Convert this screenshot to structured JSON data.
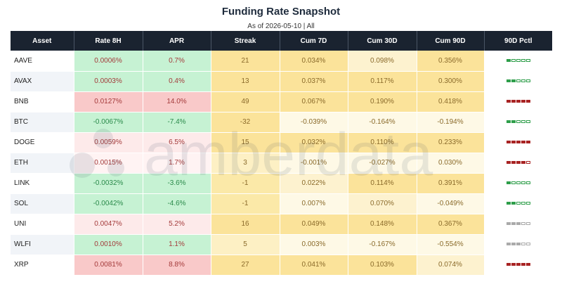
{
  "title": "Funding Rate Snapshot",
  "subtitle": "As of 2026-05-10 | All",
  "watermark_text": "amberdata",
  "columns": [
    "Asset",
    "Rate 8H",
    "APR",
    "Streak",
    "Cum 7D",
    "Cum 30D",
    "Cum 90D",
    "90D Pctl"
  ],
  "colors": {
    "header_bg": "#1a2330",
    "neg_text": "#2a8a4a",
    "pos_text": "#a33a3a",
    "gold_text": "#8a6a2a",
    "pctl_green": "#2e9e4a",
    "pctl_red": "#a82323",
    "pctl_gray": "#aaaaaa"
  },
  "chart_data": {
    "type": "table",
    "title": "Funding Rate Snapshot",
    "subtitle": "As of 2026-05-10 | All",
    "columns": [
      "Asset",
      "Rate 8H",
      "APR",
      "Streak",
      "Cum 7D",
      "Cum 30D",
      "Cum 90D",
      "90D Pctl"
    ],
    "rows": [
      {
        "asset": "AAVE",
        "rate_8h": "0.0006%",
        "apr": "0.7%",
        "streak": "21",
        "cum_7d": "0.034%",
        "cum_30d": "0.098%",
        "cum_90d": "0.356%",
        "pctl": {
          "filled": 1,
          "color": "green"
        },
        "rate_v": 0.0006,
        "apr_v": 0.7,
        "streak_v": 21,
        "c7_v": 0.034,
        "c30_v": 0.098,
        "c90_v": 0.356
      },
      {
        "asset": "AVAX",
        "rate_8h": "0.0003%",
        "apr": "0.4%",
        "streak": "13",
        "cum_7d": "0.037%",
        "cum_30d": "0.117%",
        "cum_90d": "0.300%",
        "pctl": {
          "filled": 2,
          "color": "green"
        },
        "rate_v": 0.0003,
        "apr_v": 0.4,
        "streak_v": 13,
        "c7_v": 0.037,
        "c30_v": 0.117,
        "c90_v": 0.3
      },
      {
        "asset": "BNB",
        "rate_8h": "0.0127%",
        "apr": "14.0%",
        "streak": "49",
        "cum_7d": "0.067%",
        "cum_30d": "0.190%",
        "cum_90d": "0.418%",
        "pctl": {
          "filled": 5,
          "color": "red"
        },
        "rate_v": 0.0127,
        "apr_v": 14.0,
        "streak_v": 49,
        "c7_v": 0.067,
        "c30_v": 0.19,
        "c90_v": 0.418
      },
      {
        "asset": "BTC",
        "rate_8h": "-0.0067%",
        "apr": "-7.4%",
        "streak": "-32",
        "cum_7d": "-0.039%",
        "cum_30d": "-0.164%",
        "cum_90d": "-0.194%",
        "pctl": {
          "filled": 2,
          "color": "green"
        },
        "rate_v": -0.0067,
        "apr_v": -7.4,
        "streak_v": -32,
        "c7_v": -0.039,
        "c30_v": -0.164,
        "c90_v": -0.194
      },
      {
        "asset": "DOGE",
        "rate_8h": "0.0059%",
        "apr": "6.5%",
        "streak": "15",
        "cum_7d": "0.032%",
        "cum_30d": "0.110%",
        "cum_90d": "0.233%",
        "pctl": {
          "filled": 5,
          "color": "red"
        },
        "rate_v": 0.0059,
        "apr_v": 6.5,
        "streak_v": 15,
        "c7_v": 0.032,
        "c30_v": 0.11,
        "c90_v": 0.233
      },
      {
        "asset": "ETH",
        "rate_8h": "0.0015%",
        "apr": "1.7%",
        "streak": "3",
        "cum_7d": "-0.001%",
        "cum_30d": "-0.027%",
        "cum_90d": "0.030%",
        "pctl": {
          "filled": 4,
          "color": "red"
        },
        "rate_v": 0.0015,
        "apr_v": 1.7,
        "streak_v": 3,
        "c7_v": -0.001,
        "c30_v": -0.027,
        "c90_v": 0.03
      },
      {
        "asset": "LINK",
        "rate_8h": "-0.0032%",
        "apr": "-3.6%",
        "streak": "-1",
        "cum_7d": "0.022%",
        "cum_30d": "0.114%",
        "cum_90d": "0.391%",
        "pctl": {
          "filled": 1,
          "color": "green"
        },
        "rate_v": -0.0032,
        "apr_v": -3.6,
        "streak_v": -1,
        "c7_v": 0.022,
        "c30_v": 0.114,
        "c90_v": 0.391
      },
      {
        "asset": "SOL",
        "rate_8h": "-0.0042%",
        "apr": "-4.6%",
        "streak": "-1",
        "cum_7d": "0.007%",
        "cum_30d": "0.070%",
        "cum_90d": "-0.049%",
        "pctl": {
          "filled": 2,
          "color": "green"
        },
        "rate_v": -0.0042,
        "apr_v": -4.6,
        "streak_v": -1,
        "c7_v": 0.007,
        "c30_v": 0.07,
        "c90_v": -0.049
      },
      {
        "asset": "UNI",
        "rate_8h": "0.0047%",
        "apr": "5.2%",
        "streak": "16",
        "cum_7d": "0.049%",
        "cum_30d": "0.148%",
        "cum_90d": "0.367%",
        "pctl": {
          "filled": 3,
          "color": "gray"
        },
        "rate_v": 0.0047,
        "apr_v": 5.2,
        "streak_v": 16,
        "c7_v": 0.049,
        "c30_v": 0.148,
        "c90_v": 0.367
      },
      {
        "asset": "WLFI",
        "rate_8h": "0.0010%",
        "apr": "1.1%",
        "streak": "5",
        "cum_7d": "0.003%",
        "cum_30d": "-0.167%",
        "cum_90d": "-0.554%",
        "pctl": {
          "filled": 3,
          "color": "gray"
        },
        "rate_v": 0.001,
        "apr_v": 1.1,
        "streak_v": 5,
        "c7_v": 0.003,
        "c30_v": -0.167,
        "c90_v": -0.554
      },
      {
        "asset": "XRP",
        "rate_8h": "0.0081%",
        "apr": "8.8%",
        "streak": "27",
        "cum_7d": "0.041%",
        "cum_30d": "0.103%",
        "cum_90d": "0.074%",
        "pctl": {
          "filled": 5,
          "color": "red"
        },
        "rate_v": 0.0081,
        "apr_v": 8.8,
        "streak_v": 27,
        "c7_v": 0.041,
        "c30_v": 0.103,
        "c90_v": 0.074
      }
    ]
  }
}
